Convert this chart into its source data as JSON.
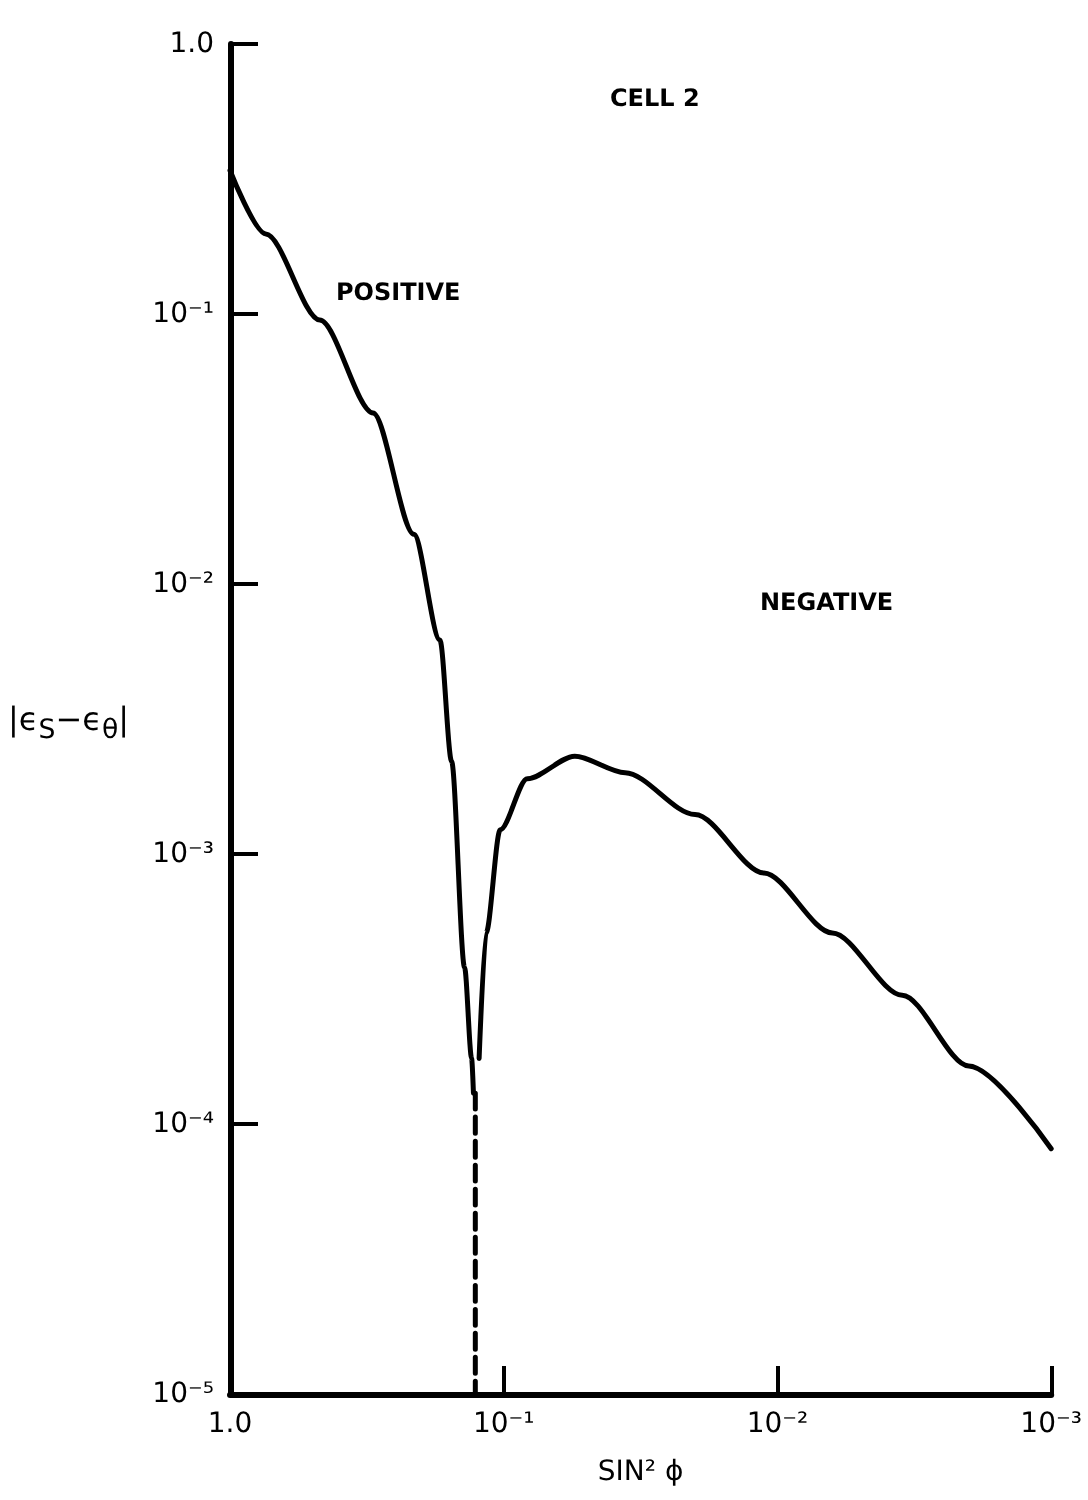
{
  "chart_data": {
    "type": "line",
    "title": "CELL 2",
    "xlabel": "SIN² ϕ",
    "ylabel": "|ϵ$_{S}$−ϵ$_{θ}$|",
    "annotations": [
      "POSITIVE",
      "NEGATIVE"
    ],
    "series": [
      {
        "color": "#000000",
        "line_style": "solid",
        "x": [
          1,
          0.74,
          0.47,
          0.3,
          0.213,
          0.171,
          0.155,
          0.139,
          0.131,
          0.129
        ],
        "values": [
          0.34,
          0.198,
          0.095,
          0.043,
          0.0153,
          0.0062,
          0.0022,
          0.00038,
          0.000175,
          0.00013
        ]
      },
      {
        "color": "#000000",
        "line_style": "solid",
        "x": [
          0.123,
          0.116,
          0.103,
          0.082,
          0.055,
          0.036,
          0.02,
          0.0112,
          0.0063,
          0.0035,
          0.002,
          0.001
        ],
        "values": [
          0.000175,
          0.00051,
          0.00123,
          0.0019,
          0.0023,
          0.002,
          0.0014,
          0.00085,
          0.00051,
          0.0003,
          0.000164,
          8.1e-05
        ]
      },
      {
        "color": "#000000",
        "line_style": "dashed",
        "x": [
          0.127,
          0.127
        ],
        "values": [
          0.00013,
          1e-05
        ]
      }
    ],
    "xlim": [
      1,
      0.001
    ],
    "ylim": [
      1e-05,
      1
    ],
    "log": "xy",
    "xticks": [
      {
        "value": 1,
        "label": "1.0"
      },
      {
        "value": 0.1,
        "label": "10⁻¹"
      },
      {
        "value": 0.01,
        "label": "10⁻²"
      },
      {
        "value": 0.001,
        "label": "10⁻³"
      }
    ],
    "yticks": [
      {
        "value": 1e-05,
        "label": "10⁻⁵"
      },
      {
        "value": 0.0001,
        "label": "10⁻⁴"
      },
      {
        "value": 0.001,
        "label": "10⁻³"
      },
      {
        "value": 0.01,
        "label": "10⁻²"
      },
      {
        "value": 0.1,
        "label": "10⁻¹"
      },
      {
        "value": 1,
        "label": "1.0"
      }
    ],
    "grid": false,
    "marker": "none"
  }
}
